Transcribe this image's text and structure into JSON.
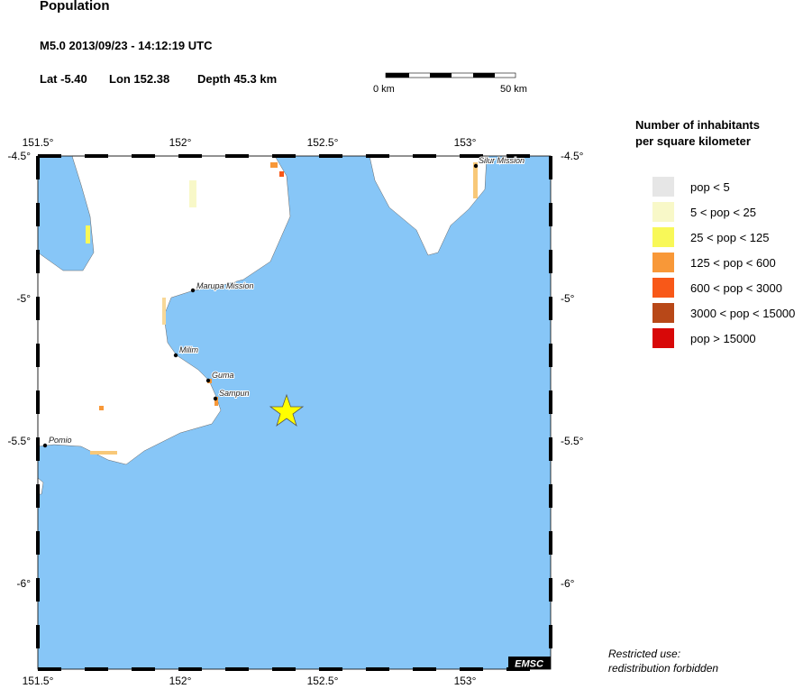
{
  "title": "Population",
  "event": {
    "line": "M5.0  2013/09/23 - 14:12:19 UTC",
    "lat": "Lat -5.40",
    "lon": "Lon 152.38",
    "depth": "Depth  45.3 km"
  },
  "scale": {
    "start": "0 km",
    "end": "50 km"
  },
  "map": {
    "lon_ticks": [
      "151.5°",
      "152°",
      "152.5°",
      "153°"
    ],
    "lat_ticks": [
      "-4.5°",
      "-5°",
      "-5.5°",
      "-6°"
    ],
    "places": [
      "Marupa Mission",
      "Milim",
      "Guma",
      "Sampun",
      "Pomio",
      "Silur Mission"
    ],
    "epicenter": {
      "lat": -5.4,
      "lon": 152.38,
      "color": "#ffff00"
    },
    "water_color": "#87c6f7",
    "badge": "EMSC"
  },
  "legend": {
    "title1": "Number of inhabitants",
    "title2": "per square kilometer",
    "items": [
      {
        "label": "pop < 5",
        "color": "#e6e6e6"
      },
      {
        "label": "5 < pop < 25",
        "color": "#f8f8c8"
      },
      {
        "label": "25 < pop < 125",
        "color": "#f8f858"
      },
      {
        "label": "125 < pop < 600",
        "color": "#f89838"
      },
      {
        "label": "600 < pop < 3000",
        "color": "#f85818"
      },
      {
        "label": "3000 < pop < 15000",
        "color": "#b84818"
      },
      {
        "label": "pop > 15000",
        "color": "#d80808"
      }
    ]
  },
  "note": {
    "line1": "Restricted use:",
    "line2": "redistribution forbidden"
  }
}
